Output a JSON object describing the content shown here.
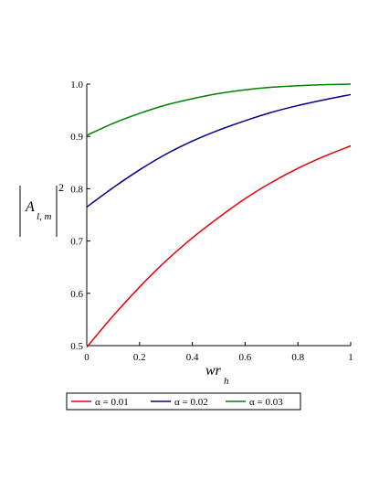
{
  "chart_data": {
    "type": "line",
    "xlabel": {
      "main": "wr",
      "sub": "h"
    },
    "ylabel": {
      "main": "A",
      "sub": "l, m",
      "sup": "2"
    },
    "xlim": [
      0,
      1
    ],
    "ylim": [
      0.5,
      1.0
    ],
    "x_ticks": [
      {
        "value": 0,
        "label": "0"
      },
      {
        "value": 0.2,
        "label": "0.2"
      },
      {
        "value": 0.4,
        "label": "0.4"
      },
      {
        "value": 0.6,
        "label": "0.6"
      },
      {
        "value": 0.8,
        "label": "0.8"
      },
      {
        "value": 1,
        "label": "1"
      }
    ],
    "y_ticks": [
      {
        "value": 0.5,
        "label": "0.5"
      },
      {
        "value": 0.6,
        "label": "0.6"
      },
      {
        "value": 0.7,
        "label": "0.7"
      },
      {
        "value": 0.8,
        "label": "0.8"
      },
      {
        "value": 0.9,
        "label": "0.9"
      },
      {
        "value": 1.0,
        "label": "1.0"
      }
    ],
    "grid": false,
    "legend_position": "bottom",
    "x": [
      0,
      0.1,
      0.2,
      0.3,
      0.4,
      0.5,
      0.6,
      0.7,
      0.8,
      0.9,
      1.0
    ],
    "series": [
      {
        "name": "α = 0.01",
        "color": "#e8000b",
        "values": [
          0.497,
          0.557,
          0.612,
          0.662,
          0.706,
          0.745,
          0.781,
          0.812,
          0.839,
          0.862,
          0.882
        ]
      },
      {
        "name": "α = 0.02",
        "color": "#00008b",
        "values": [
          0.765,
          0.802,
          0.836,
          0.866,
          0.891,
          0.912,
          0.93,
          0.946,
          0.959,
          0.97,
          0.98
        ]
      },
      {
        "name": "α = 0.03",
        "color": "#008000",
        "values": [
          0.902,
          0.925,
          0.944,
          0.96,
          0.972,
          0.982,
          0.989,
          0.994,
          0.997,
          0.999,
          1.0
        ]
      }
    ]
  }
}
